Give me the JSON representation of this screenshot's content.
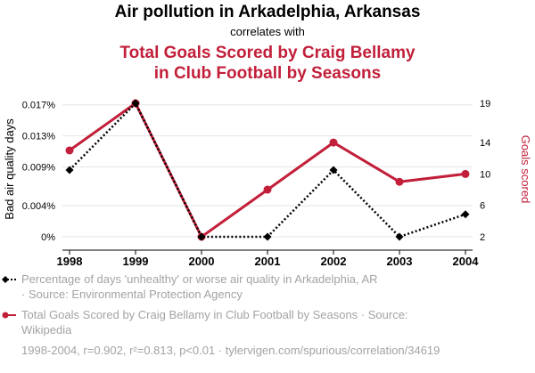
{
  "chart_data": {
    "type": "line",
    "title": "Air pollution in Arkadelphia, Arkansas",
    "subtitle": "correlates with",
    "title2_lines": [
      "Total Goals Scored by Craig Bellamy",
      "in Club Football by Seasons"
    ],
    "x": [
      1998,
      1999,
      2000,
      2001,
      2002,
      2003,
      2004
    ],
    "x_labels": [
      "1998",
      "1999",
      "2000",
      "2001",
      "2002",
      "2003",
      "2004"
    ],
    "left_axis": {
      "label": "Bad air quality days",
      "range": [
        0,
        0.0172
      ],
      "ticks": [
        0,
        0.004,
        0.009,
        0.013,
        0.017
      ],
      "tick_labels": [
        "0%",
        "0.004%",
        "0.009%",
        "0.013%",
        "0.017%"
      ]
    },
    "right_axis": {
      "label": "Goals scored",
      "range": [
        2,
        19
      ],
      "ticks": [
        2,
        6,
        10,
        14,
        19
      ],
      "tick_labels": [
        "2",
        "6",
        "10",
        "14",
        "19"
      ]
    },
    "series": [
      {
        "name": "Percentage of days 'unhealthy' or worse air quality in Arkadelphia, AR · Source: Environmental Protection Agency",
        "legend_lines": [
          "Percentage of days 'unhealthy' or worse air quality in Arkadelphia, AR",
          "· Source: Environmental Protection Agency"
        ],
        "axis": "left",
        "color": "#000000",
        "style": "dotted",
        "marker": "diamond",
        "values": [
          0.0086,
          0.0172,
          0.0,
          0.0,
          0.0086,
          0.0,
          0.0029
        ]
      },
      {
        "name": "Total Goals Scored by Craig Bellamy in Club Football by Seasons · Source: Wikipedia",
        "legend_lines": [
          "Total Goals Scored by Craig Bellamy in Club Football by Seasons · Source:",
          "Wikipedia"
        ],
        "axis": "right",
        "color": "#c21f3a",
        "style": "solid",
        "marker": "circle",
        "values": [
          13,
          19,
          2,
          8,
          14,
          9,
          10
        ]
      }
    ],
    "footer": "1998-2004, r=0.902, r²=0.813, p<0.01 · tylervigen.com/spurious/correlation/34619"
  },
  "colors": {
    "accent": "#c21f3a",
    "muted": "#a3a3a3",
    "grid": "#e5e5e5"
  }
}
